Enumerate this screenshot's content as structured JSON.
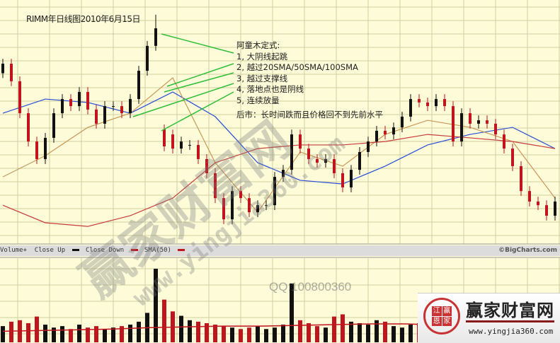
{
  "chart_data": {
    "type": "candlestick",
    "title": "RIMM年日线图2010年6月15日",
    "ylim": [
      0,
      100
    ],
    "open": [
      70,
      73.9,
      66.7,
      53.6,
      42,
      34.8,
      43.5,
      53.6,
      59.4,
      56.5,
      62.3,
      55.1,
      49.3,
      56.5,
      56.5,
      53.6,
      59.4,
      71,
      81.2,
      47,
      44.9,
      39.1,
      40.6,
      40.6,
      34.8,
      29,
      18.8,
      10.1,
      21.7,
      18.8,
      13,
      15.9,
      15.9,
      27.5,
      30.4,
      44.9,
      39.1,
      34.8,
      33.3,
      34.8,
      29,
      23.2,
      30.4,
      37.7,
      42,
      46.4,
      44.9,
      47.8,
      52.2,
      59.4,
      58,
      56.5,
      59.4,
      56.5,
      42,
      53.6,
      49.3,
      50.7,
      49.3,
      44.9,
      39.1,
      31.9,
      21.7,
      17.4,
      15.9,
      11.6
    ],
    "close": [
      73.9,
      66.7,
      53.6,
      42,
      34.8,
      43.5,
      53.6,
      59.4,
      56.5,
      62.3,
      55.1,
      49.3,
      56.5,
      56.5,
      53.6,
      59.4,
      71,
      81.2,
      88.4,
      40,
      39.1,
      42,
      40.6,
      34.8,
      29,
      18.8,
      10.1,
      21.7,
      18.8,
      13,
      15.9,
      15.9,
      27.5,
      30.4,
      44.9,
      39.1,
      34.8,
      33.3,
      34.8,
      29,
      23.2,
      30.4,
      37.7,
      42,
      46.4,
      44.9,
      47.8,
      52.2,
      59.4,
      58,
      56.5,
      59.4,
      56.5,
      42,
      53.6,
      49.3,
      50.7,
      49.3,
      44.9,
      39.1,
      31.9,
      21.7,
      17.4,
      15.9,
      11.6,
      17.4
    ],
    "high_spike": {
      "index": 18,
      "value": 94
    },
    "volume": [
      22,
      28,
      30,
      26,
      35,
      24,
      20,
      22,
      18,
      24,
      20,
      22,
      18,
      20,
      22,
      24,
      28,
      40,
      100,
      58,
      42,
      36,
      30,
      28,
      26,
      24,
      22,
      20,
      18,
      20,
      22,
      18,
      20,
      24,
      80,
      30,
      26,
      22,
      20,
      35,
      38,
      28,
      26,
      24,
      30,
      28,
      22,
      20,
      24,
      26,
      22,
      20,
      24,
      35,
      28,
      22,
      24,
      20,
      22,
      26,
      24,
      30,
      26,
      20,
      18,
      16
    ],
    "sma": [
      {
        "name": "SMA(50)",
        "color": "#2a4fd6",
        "every": 5,
        "values": [
          53.6,
          59.4,
          58,
          53.6,
          62.3,
          52.2,
          33.3,
          26.1,
          24.6,
          31.9,
          40.6,
          44.9,
          47.8,
          39.1
        ]
      },
      {
        "name": "",
        "color": "#c89858",
        "every": 5,
        "values": [
          27.5,
          36.2,
          47.8,
          53.6,
          68.1,
          33.3,
          13,
          37.7,
          31.9,
          44.9,
          50.7,
          47.8,
          42,
          18.8
        ]
      },
      {
        "name": "",
        "color": "#c83c3c",
        "every": 5,
        "values": [
          15.9,
          8.7,
          7.2,
          11.6,
          18.8,
          33.3,
          39.1,
          40.6,
          40.6,
          42,
          44.9,
          43.5,
          42,
          39.1
        ]
      }
    ],
    "volume_sma": [
      15,
      16,
      17,
      18,
      20,
      21,
      22,
      22,
      23,
      24,
      25,
      25,
      23,
      22,
      21,
      20
    ],
    "colors": {
      "up": "#111111",
      "down": "#c0141e",
      "background": "#fdfbd8",
      "grid": "#cfcfa0",
      "annotation": "#2fbf3a"
    }
  },
  "annotations": {
    "heading": "阿童木定式:",
    "items": [
      "1, 大阴线起跳",
      "2, 越过20SMA/50SMA/100SMA",
      "3, 越过支撑线",
      "4, 落地点也是阴线",
      "5, 连续放量"
    ],
    "after": "后市：长时间跌而且价格回不到先前水平"
  },
  "legend": {
    "volume": "Volume+",
    "close_up": "Close Up",
    "close_down": "Close Down",
    "sma": "SMA(50)",
    "credit": "©BigCharts.com"
  },
  "watermarks": {
    "brand": "赢家财富网",
    "url": "www.yingjia360.com",
    "qq": "QQ:100800360"
  },
  "logo": {
    "seal": [
      "江",
      "赢",
      "恩",
      "家"
    ],
    "brand": "赢家财富网",
    "url": "www.yingjia360.com"
  }
}
